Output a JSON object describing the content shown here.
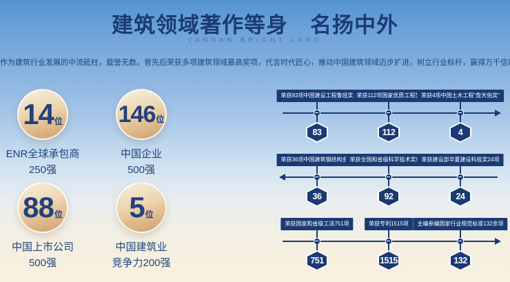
{
  "header": {
    "title": "建筑领域著作等身　名扬中外",
    "subtitle": "YANNAN BRIGHT LAND",
    "description": "作为建筑行业发展的中流砥柱，载誉无数。曾先后荣获多项建筑领域最高奖项，代言时代匠心，推动中国建筑领域迈步扩进，树立行业标杆，赢得万千信赖。"
  },
  "stats": {
    "items": [
      {
        "number": "14",
        "unit": "位",
        "line1": "ENR全球承包商",
        "line2": "250强"
      },
      {
        "number": "146",
        "unit": "位",
        "line1": "中国企业",
        "line2": "500强"
      },
      {
        "number": "88",
        "unit": "位",
        "line1": "中国上市公司",
        "line2": "500强"
      },
      {
        "number": "5",
        "unit": "位",
        "line1": "中国建筑业",
        "line2": "竞争力200强"
      }
    ]
  },
  "timeline": {
    "rows": [
      {
        "direction": "right",
        "items": [
          {
            "label": "荣获83项中国建设工程鲁班奖",
            "value": "83"
          },
          {
            "label": "荣获112项国家优质工程奖",
            "value": "112"
          },
          {
            "label": "荣获4项中国土木工程“詹天佑奖”",
            "value": "4"
          }
        ]
      },
      {
        "direction": "left",
        "items": [
          {
            "label": "荣获36项中国建筑钢结构金奖",
            "value": "36"
          },
          {
            "label": "荣获全国和省级科学技术奖92项",
            "value": "92"
          },
          {
            "label": "荣获建设部华夏建设科技奖24项",
            "value": "24"
          }
        ]
      },
      {
        "direction": "right",
        "items": [
          {
            "label": "荣获国家和省级工法751项",
            "value": "751"
          },
          {
            "label": "荣获专利1515项",
            "value": "1515"
          },
          {
            "label": "主编参编国家行业规范标准132余项",
            "value": "132"
          }
        ]
      }
    ]
  },
  "colors": {
    "navy": "#1a3a75",
    "title_navy": "#1b3b72",
    "gold": "#d2a472",
    "sky_top": "#5594d3",
    "cream_bottom": "#faf0de"
  }
}
